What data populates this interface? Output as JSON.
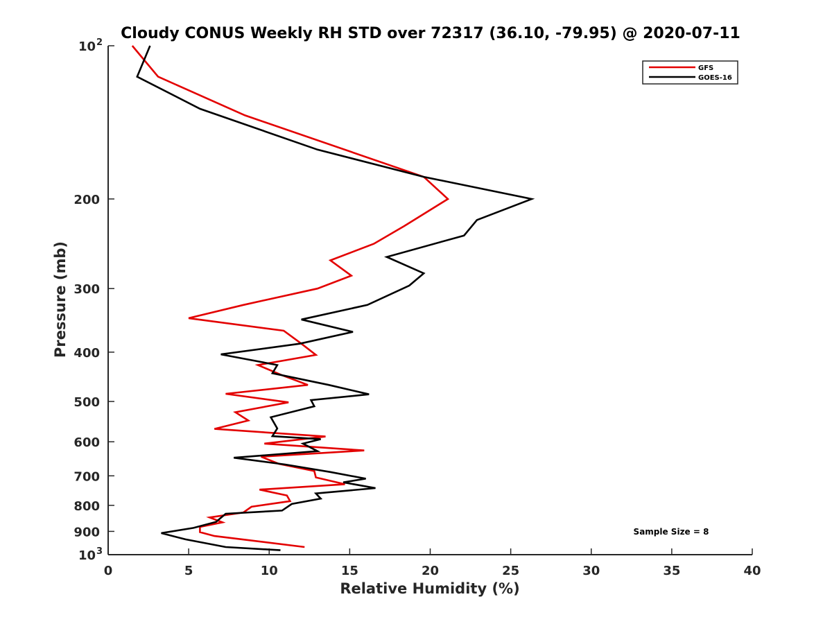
{
  "chart_data": {
    "type": "line",
    "title": "Cloudy CONUS Weekly RH STD over 72317 (36.10, -79.95) @ 2020-07-11",
    "xlabel": "Relative Humidity (%)",
    "ylabel": "Pressure (mb)",
    "xlim": [
      0,
      40
    ],
    "ylim": [
      100,
      1000
    ],
    "y_scale": "log",
    "y_reversed": true,
    "grid": false,
    "legend_position": "top-right",
    "x_ticks": [
      "0",
      "5",
      "10",
      "15",
      "20",
      "25",
      "30",
      "35",
      "40"
    ],
    "y_ticks": [
      {
        "value": 100,
        "label": "10",
        "sup": "2"
      },
      {
        "value": 200,
        "label": "200",
        "sup": ""
      },
      {
        "value": 300,
        "label": "300",
        "sup": ""
      },
      {
        "value": 400,
        "label": "400",
        "sup": ""
      },
      {
        "value": 500,
        "label": "500",
        "sup": ""
      },
      {
        "value": 600,
        "label": "600",
        "sup": ""
      },
      {
        "value": 700,
        "label": "700",
        "sup": ""
      },
      {
        "value": 800,
        "label": "800",
        "sup": ""
      },
      {
        "value": 900,
        "label": "900",
        "sup": ""
      },
      {
        "value": 1000,
        "label": "10",
        "sup": "3"
      }
    ],
    "series": [
      {
        "name": "GFS",
        "color": "#e30000",
        "points": [
          [
            1.5,
            100
          ],
          [
            3.1,
            115
          ],
          [
            8.5,
            137
          ],
          [
            19.6,
            181
          ],
          [
            21.1,
            200
          ],
          [
            18.4,
            226
          ],
          [
            16.5,
            245
          ],
          [
            13.8,
            264
          ],
          [
            15.1,
            283
          ],
          [
            13.0,
            300
          ],
          [
            8.4,
            323
          ],
          [
            5.0,
            343
          ],
          [
            10.9,
            363
          ],
          [
            12.0,
            385
          ],
          [
            12.9,
            405
          ],
          [
            9.3,
            424
          ],
          [
            10.8,
            444
          ],
          [
            12.4,
            464
          ],
          [
            7.3,
            483
          ],
          [
            11.2,
            502
          ],
          [
            7.9,
            525
          ],
          [
            8.7,
            545
          ],
          [
            6.6,
            566
          ],
          [
            13.5,
            586
          ],
          [
            9.7,
            605
          ],
          [
            15.9,
            624
          ],
          [
            9.5,
            642
          ],
          [
            10.6,
            663
          ],
          [
            12.8,
            685
          ],
          [
            12.9,
            705
          ],
          [
            14.7,
            727
          ],
          [
            9.4,
            745
          ],
          [
            11.1,
            765
          ],
          [
            11.3,
            785
          ],
          [
            8.9,
            805
          ],
          [
            8.4,
            826
          ],
          [
            6.3,
            845
          ],
          [
            7.1,
            864
          ],
          [
            5.7,
            882
          ],
          [
            5.7,
            903
          ],
          [
            6.6,
            919
          ],
          [
            12.2,
            966
          ]
        ]
      },
      {
        "name": "GOES-16",
        "color": "#000000",
        "points": [
          [
            2.6,
            100
          ],
          [
            1.8,
            115
          ],
          [
            5.7,
            133
          ],
          [
            13.0,
            160
          ],
          [
            19.6,
            181
          ],
          [
            26.3,
            200
          ],
          [
            22.9,
            220
          ],
          [
            22.1,
            236
          ],
          [
            17.3,
            260
          ],
          [
            19.6,
            280
          ],
          [
            18.7,
            296
          ],
          [
            16.1,
            323
          ],
          [
            12.0,
            345
          ],
          [
            15.2,
            365
          ],
          [
            11.9,
            385
          ],
          [
            7.0,
            404
          ],
          [
            10.5,
            424
          ],
          [
            10.2,
            440
          ],
          [
            13.7,
            464
          ],
          [
            16.2,
            484
          ],
          [
            12.6,
            497
          ],
          [
            12.8,
            511
          ],
          [
            10.1,
            537
          ],
          [
            10.5,
            565
          ],
          [
            10.2,
            585
          ],
          [
            13.2,
            593
          ],
          [
            12.1,
            605
          ],
          [
            13.0,
            626
          ],
          [
            7.8,
            645
          ],
          [
            11.0,
            665
          ],
          [
            13.8,
            688
          ],
          [
            16.0,
            709
          ],
          [
            14.6,
            721
          ],
          [
            16.6,
            740
          ],
          [
            12.9,
            758
          ],
          [
            13.2,
            776
          ],
          [
            11.4,
            795
          ],
          [
            10.8,
            819
          ],
          [
            7.3,
            831
          ],
          [
            6.7,
            862
          ],
          [
            5.3,
            886
          ],
          [
            3.3,
            907
          ],
          [
            4.8,
            933
          ],
          [
            7.3,
            966
          ],
          [
            10.7,
            980
          ]
        ]
      }
    ],
    "annotation": "Sample Size = 8"
  }
}
